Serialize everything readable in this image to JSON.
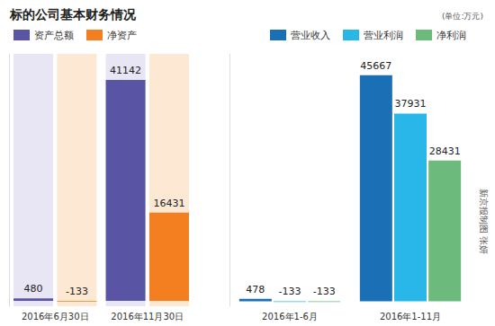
{
  "title": "标的公司基本财务情况",
  "subtitle": "(单位:万元)",
  "source": "新京报制图 张妍",
  "chart_data": [
    {
      "type": "bar",
      "categories": [
        "2016年6月30日",
        "2016年11月30日"
      ],
      "series": [
        {
          "name": "资产总额",
          "color": "#5a54a4",
          "values": [
            480,
            41142
          ]
        },
        {
          "name": "净资产",
          "color": "#f47f20",
          "values": [
            -133,
            16431
          ]
        }
      ],
      "ylim": [
        -1000,
        46000
      ],
      "grid": false,
      "tick_labels": "x",
      "data_labels": true,
      "legend": "top-left"
    },
    {
      "type": "bar",
      "categories": [
        "2016年1-6月",
        "2016年1-11月"
      ],
      "series": [
        {
          "name": "营业收入",
          "color": "#1b6fb5",
          "values": [
            478,
            45667
          ]
        },
        {
          "name": "营业利润",
          "color": "#29b6e8",
          "values": [
            -133,
            37931
          ]
        },
        {
          "name": "净利润",
          "color": "#6dbb7c",
          "values": [
            -133,
            28431
          ]
        }
      ],
      "ylim": [
        -1000,
        50000
      ],
      "grid": false,
      "tick_labels": "x",
      "data_labels": true,
      "legend": "top-right"
    }
  ]
}
